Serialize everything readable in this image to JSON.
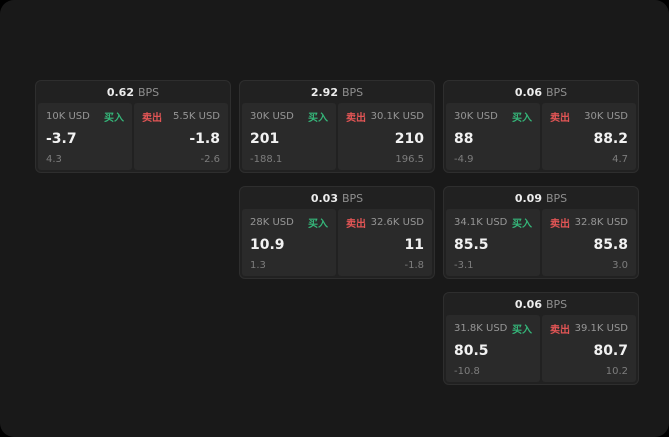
{
  "labels": {
    "bps": "BPS",
    "buy": "买入",
    "sell": "卖出"
  },
  "colors": {
    "buy": "#35b579",
    "sell": "#e25555",
    "background": "#191919",
    "card": "#212121"
  },
  "cards": [
    {
      "spread": "0.62",
      "buy": {
        "size": "10K USD",
        "price": "-3.7",
        "sub": "4.3"
      },
      "sell": {
        "size": "5.5K USD",
        "price": "-1.8",
        "sub": "-2.6"
      }
    },
    {
      "spread": "2.92",
      "buy": {
        "size": "30K USD",
        "price": "201",
        "sub": "-188.1"
      },
      "sell": {
        "size": "30.1K USD",
        "price": "210",
        "sub": "196.5"
      }
    },
    {
      "spread": "0.06",
      "buy": {
        "size": "30K USD",
        "price": "88",
        "sub": "-4.9"
      },
      "sell": {
        "size": "30K USD",
        "price": "88.2",
        "sub": "4.7"
      }
    },
    {
      "spread": "0.03",
      "buy": {
        "size": "28K USD",
        "price": "10.9",
        "sub": "1.3"
      },
      "sell": {
        "size": "32.6K USD",
        "price": "11",
        "sub": "-1.8"
      }
    },
    {
      "spread": "0.09",
      "buy": {
        "size": "34.1K USD",
        "price": "85.5",
        "sub": "-3.1"
      },
      "sell": {
        "size": "32.8K USD",
        "price": "85.8",
        "sub": "3.0"
      }
    },
    {
      "spread": "0.06",
      "buy": {
        "size": "31.8K USD",
        "price": "80.5",
        "sub": "-10.8"
      },
      "sell": {
        "size": "39.1K USD",
        "price": "80.7",
        "sub": "10.2"
      }
    }
  ]
}
